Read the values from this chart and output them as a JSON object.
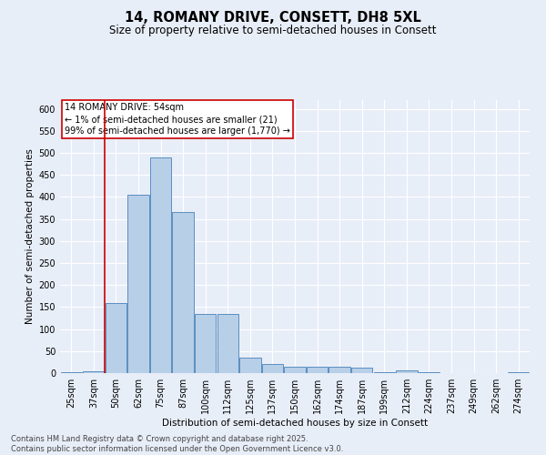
{
  "title_line1": "14, ROMANY DRIVE, CONSETT, DH8 5XL",
  "title_line2": "Size of property relative to semi-detached houses in Consett",
  "xlabel": "Distribution of semi-detached houses by size in Consett",
  "ylabel": "Number of semi-detached properties",
  "categories": [
    "25sqm",
    "37sqm",
    "50sqm",
    "62sqm",
    "75sqm",
    "87sqm",
    "100sqm",
    "112sqm",
    "125sqm",
    "137sqm",
    "150sqm",
    "162sqm",
    "174sqm",
    "187sqm",
    "199sqm",
    "212sqm",
    "224sqm",
    "237sqm",
    "249sqm",
    "262sqm",
    "274sqm"
  ],
  "values": [
    3,
    5,
    160,
    405,
    490,
    365,
    135,
    135,
    35,
    20,
    15,
    15,
    15,
    12,
    3,
    6,
    3,
    0,
    0,
    0,
    2
  ],
  "bar_color": "#b8cfe8",
  "bar_edge_color": "#5a8fc0",
  "vline_x_index": 2,
  "vline_color": "#cc0000",
  "annotation_title": "14 ROMANY DRIVE: 54sqm",
  "annotation_line2": "← 1% of semi-detached houses are smaller (21)",
  "annotation_line3": "99% of semi-detached houses are larger (1,770) →",
  "annotation_box_edge_color": "#cc0000",
  "ylim": [
    0,
    620
  ],
  "yticks": [
    0,
    50,
    100,
    150,
    200,
    250,
    300,
    350,
    400,
    450,
    500,
    550,
    600
  ],
  "bg_color": "#e8eef8",
  "plot_bg_color": "#e8eef8",
  "footer_line1": "Contains HM Land Registry data © Crown copyright and database right 2025.",
  "footer_line2": "Contains public sector information licensed under the Open Government Licence v3.0.",
  "title_fontsize": 10.5,
  "subtitle_fontsize": 8.5,
  "axis_label_fontsize": 7.5,
  "tick_fontsize": 7,
  "annotation_fontsize": 7,
  "footer_fontsize": 6
}
